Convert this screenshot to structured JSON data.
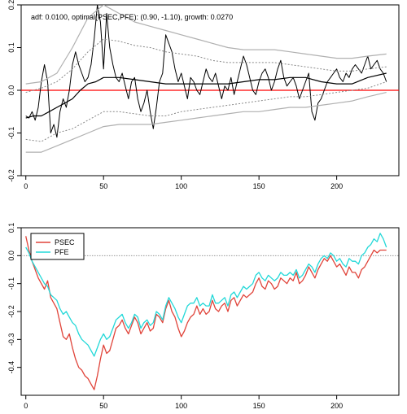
{
  "chart_data": [
    {
      "type": "line",
      "title": "adf: 0.0100, optimal(PSEC,PFE): (0.90, -1.10), growth: 0.0270",
      "xlim": [
        -3,
        240
      ],
      "ylim": [
        -0.2,
        0.2
      ],
      "x_ticks": [
        0,
        50,
        100,
        150,
        200
      ],
      "y_ticks": [
        -0.2,
        -0.1,
        0.0,
        0.1,
        0.2
      ],
      "y_tick_labels": [
        "-0.2",
        "-0.1",
        "0.0",
        "0.1",
        "0.2"
      ],
      "reference_line": {
        "y": 0,
        "color": "#ff0000"
      },
      "colors": {
        "spread": "#000000",
        "mean": "#000000",
        "band_inner": "#888888",
        "band_outer": "#b0b0b0"
      },
      "series": [
        {
          "key": "spread",
          "x": [
            0,
            2,
            4,
            6,
            8,
            10,
            12,
            14,
            16,
            18,
            20,
            22,
            24,
            26,
            28,
            30,
            32,
            34,
            36,
            38,
            40,
            42,
            44,
            46,
            48,
            50,
            52,
            54,
            56,
            58,
            60,
            62,
            64,
            66,
            68,
            70,
            72,
            74,
            76,
            78,
            80,
            82,
            84,
            86,
            88,
            90,
            92,
            94,
            96,
            98,
            100,
            102,
            104,
            106,
            108,
            110,
            112,
            114,
            116,
            118,
            120,
            122,
            124,
            126,
            128,
            130,
            132,
            134,
            136,
            138,
            140,
            142,
            144,
            146,
            148,
            150,
            152,
            154,
            156,
            158,
            160,
            162,
            164,
            166,
            168,
            170,
            172,
            174,
            176,
            178,
            180,
            182,
            184,
            186,
            188,
            190,
            192,
            194,
            196,
            198,
            200,
            202,
            204,
            206,
            208,
            210,
            212,
            214,
            216,
            218,
            220,
            222,
            224,
            226,
            228,
            230,
            232
          ],
          "y": [
            -0.06,
            -0.065,
            -0.05,
            -0.07,
            -0.04,
            0.02,
            0.06,
            0.02,
            -0.1,
            -0.08,
            -0.11,
            -0.05,
            -0.02,
            -0.04,
            0.0,
            0.06,
            0.09,
            0.06,
            0.04,
            0.02,
            0.03,
            0.06,
            0.12,
            0.2,
            0.16,
            0.05,
            0.18,
            0.1,
            0.06,
            0.03,
            0.02,
            0.04,
            0.01,
            -0.02,
            0.02,
            0.03,
            -0.02,
            -0.05,
            -0.03,
            0.0,
            -0.05,
            -0.09,
            -0.04,
            0.02,
            0.04,
            0.13,
            0.11,
            0.09,
            0.05,
            0.02,
            0.04,
            0.01,
            -0.02,
            0.03,
            0.02,
            0.0,
            -0.01,
            0.02,
            0.05,
            0.03,
            0.02,
            0.04,
            0.01,
            -0.02,
            0.01,
            0.0,
            0.03,
            -0.01,
            0.02,
            0.05,
            0.08,
            0.06,
            0.03,
            0.0,
            -0.01,
            0.02,
            0.04,
            0.05,
            0.03,
            0.0,
            0.02,
            0.05,
            0.07,
            0.03,
            0.01,
            0.02,
            0.03,
            0.01,
            -0.02,
            0.0,
            0.02,
            0.04,
            -0.05,
            -0.07,
            -0.03,
            -0.02,
            0.0,
            0.02,
            0.03,
            0.04,
            0.05,
            0.03,
            0.02,
            0.04,
            0.03,
            0.05,
            0.06,
            0.05,
            0.04,
            0.06,
            0.08,
            0.05,
            0.06,
            0.07,
            0.05,
            0.04,
            0.02
          ]
        },
        {
          "key": "mean",
          "x": [
            0,
            5,
            10,
            15,
            20,
            25,
            30,
            35,
            40,
            45,
            50,
            60,
            70,
            80,
            90,
            100,
            110,
            120,
            130,
            140,
            150,
            160,
            170,
            180,
            190,
            200,
            210,
            220,
            232
          ],
          "y": [
            -0.065,
            -0.06,
            -0.06,
            -0.05,
            -0.04,
            -0.03,
            -0.02,
            0.0,
            0.015,
            0.02,
            0.03,
            0.03,
            0.025,
            0.02,
            0.015,
            0.015,
            0.015,
            0.015,
            0.015,
            0.02,
            0.025,
            0.025,
            0.03,
            0.03,
            0.02,
            0.015,
            0.015,
            0.03,
            0.04
          ]
        },
        {
          "key": "band_inner_upper",
          "x": [
            0,
            10,
            20,
            30,
            40,
            50,
            60,
            70,
            80,
            90,
            100,
            110,
            120,
            130,
            140,
            150,
            160,
            170,
            180,
            190,
            200,
            210,
            220,
            232
          ],
          "y": [
            -0.005,
            0.005,
            0.02,
            0.05,
            0.09,
            0.12,
            0.115,
            0.105,
            0.1,
            0.09,
            0.085,
            0.08,
            0.07,
            0.065,
            0.065,
            0.065,
            0.065,
            0.06,
            0.055,
            0.05,
            0.045,
            0.045,
            0.05,
            0.055
          ]
        },
        {
          "key": "band_inner_lower",
          "x": [
            0,
            10,
            20,
            30,
            40,
            50,
            60,
            70,
            80,
            90,
            100,
            110,
            120,
            130,
            140,
            150,
            160,
            170,
            180,
            190,
            200,
            210,
            220,
            232
          ],
          "y": [
            -0.115,
            -0.12,
            -0.1,
            -0.09,
            -0.07,
            -0.05,
            -0.05,
            -0.055,
            -0.06,
            -0.06,
            -0.05,
            -0.045,
            -0.04,
            -0.035,
            -0.03,
            -0.025,
            -0.02,
            -0.015,
            -0.015,
            -0.01,
            -0.005,
            0.0,
            0.005,
            0.02
          ]
        },
        {
          "key": "band_outer_upper",
          "x": [
            0,
            10,
            20,
            30,
            40,
            50,
            60,
            70,
            80,
            90,
            100,
            110,
            120,
            130,
            140,
            150,
            160,
            170,
            180,
            190,
            200,
            210,
            220,
            232
          ],
          "y": [
            0.015,
            0.02,
            0.04,
            0.1,
            0.17,
            0.2,
            0.18,
            0.16,
            0.15,
            0.14,
            0.13,
            0.12,
            0.11,
            0.1,
            0.095,
            0.095,
            0.095,
            0.09,
            0.085,
            0.08,
            0.075,
            0.075,
            0.08,
            0.085
          ]
        },
        {
          "key": "band_outer_lower",
          "x": [
            0,
            10,
            20,
            30,
            40,
            50,
            60,
            70,
            80,
            90,
            100,
            110,
            120,
            130,
            140,
            150,
            160,
            170,
            180,
            190,
            200,
            210,
            220,
            232
          ],
          "y": [
            -0.145,
            -0.145,
            -0.13,
            -0.115,
            -0.1,
            -0.085,
            -0.08,
            -0.08,
            -0.08,
            -0.075,
            -0.07,
            -0.065,
            -0.06,
            -0.055,
            -0.05,
            -0.05,
            -0.045,
            -0.04,
            -0.04,
            -0.035,
            -0.03,
            -0.025,
            -0.015,
            -0.005
          ]
        }
      ]
    },
    {
      "type": "line",
      "xlim": [
        -3,
        240
      ],
      "ylim": [
        -0.5,
        0.1
      ],
      "x_ticks": [
        0,
        50,
        100,
        150,
        200
      ],
      "y_ticks": [
        -0.4,
        -0.3,
        -0.2,
        -0.1,
        0.0,
        0.1
      ],
      "y_tick_labels": [
        "-0.4",
        "-0.3",
        "-0.2",
        "-0.1",
        "0.0",
        "0.1"
      ],
      "reference_line": {
        "y": 0,
        "color": "#888888",
        "style": "dotted"
      },
      "legend": {
        "placement": "top-left"
      },
      "series": [
        {
          "name": "PSEC",
          "color": "#e0443a",
          "x": [
            0,
            2,
            4,
            6,
            8,
            10,
            12,
            14,
            16,
            18,
            20,
            22,
            24,
            26,
            28,
            30,
            32,
            34,
            36,
            38,
            40,
            42,
            44,
            46,
            48,
            50,
            52,
            54,
            56,
            58,
            60,
            62,
            64,
            66,
            68,
            70,
            72,
            74,
            76,
            78,
            80,
            82,
            84,
            86,
            88,
            90,
            92,
            94,
            96,
            98,
            100,
            102,
            104,
            106,
            108,
            110,
            112,
            114,
            116,
            118,
            120,
            122,
            124,
            126,
            128,
            130,
            132,
            134,
            136,
            138,
            140,
            142,
            144,
            146,
            148,
            150,
            152,
            154,
            156,
            158,
            160,
            162,
            164,
            166,
            168,
            170,
            172,
            174,
            176,
            178,
            180,
            182,
            184,
            186,
            188,
            190,
            192,
            194,
            196,
            198,
            200,
            202,
            204,
            206,
            208,
            210,
            212,
            214,
            216,
            218,
            220,
            222,
            224,
            226,
            228,
            230,
            232
          ],
          "y": [
            0.07,
            0.02,
            -0.02,
            -0.05,
            -0.08,
            -0.1,
            -0.12,
            -0.09,
            -0.15,
            -0.17,
            -0.19,
            -0.24,
            -0.29,
            -0.3,
            -0.28,
            -0.33,
            -0.37,
            -0.4,
            -0.41,
            -0.43,
            -0.44,
            -0.46,
            -0.48,
            -0.43,
            -0.37,
            -0.32,
            -0.35,
            -0.34,
            -0.3,
            -0.26,
            -0.25,
            -0.23,
            -0.26,
            -0.28,
            -0.25,
            -0.22,
            -0.24,
            -0.28,
            -0.26,
            -0.24,
            -0.27,
            -0.26,
            -0.21,
            -0.22,
            -0.24,
            -0.19,
            -0.16,
            -0.2,
            -0.22,
            -0.26,
            -0.29,
            -0.27,
            -0.24,
            -0.22,
            -0.21,
            -0.18,
            -0.21,
            -0.19,
            -0.21,
            -0.2,
            -0.16,
            -0.19,
            -0.2,
            -0.18,
            -0.17,
            -0.2,
            -0.16,
            -0.15,
            -0.18,
            -0.16,
            -0.14,
            -0.15,
            -0.14,
            -0.13,
            -0.1,
            -0.08,
            -0.11,
            -0.12,
            -0.09,
            -0.1,
            -0.12,
            -0.11,
            -0.08,
            -0.09,
            -0.1,
            -0.08,
            -0.09,
            -0.06,
            -0.1,
            -0.09,
            -0.07,
            -0.04,
            -0.06,
            -0.08,
            -0.05,
            -0.03,
            -0.01,
            -0.02,
            0.0,
            -0.02,
            -0.04,
            -0.03,
            -0.05,
            -0.07,
            -0.04,
            -0.06,
            -0.06,
            -0.08,
            -0.05,
            -0.04,
            -0.02,
            0.0,
            0.02,
            0.01,
            0.02,
            0.02,
            0.02
          ]
        },
        {
          "name": "PFE",
          "color": "#22d8d8",
          "x": [
            0,
            2,
            4,
            6,
            8,
            10,
            12,
            14,
            16,
            18,
            20,
            22,
            24,
            26,
            28,
            30,
            32,
            34,
            36,
            38,
            40,
            42,
            44,
            46,
            48,
            50,
            52,
            54,
            56,
            58,
            60,
            62,
            64,
            66,
            68,
            70,
            72,
            74,
            76,
            78,
            80,
            82,
            84,
            86,
            88,
            90,
            92,
            94,
            96,
            98,
            100,
            102,
            104,
            106,
            108,
            110,
            112,
            114,
            116,
            118,
            120,
            122,
            124,
            126,
            128,
            130,
            132,
            134,
            136,
            138,
            140,
            142,
            144,
            146,
            148,
            150,
            152,
            154,
            156,
            158,
            160,
            162,
            164,
            166,
            168,
            170,
            172,
            174,
            176,
            178,
            180,
            182,
            184,
            186,
            188,
            190,
            192,
            194,
            196,
            198,
            200,
            202,
            204,
            206,
            208,
            210,
            212,
            214,
            216,
            218,
            220,
            222,
            224,
            226,
            228,
            230,
            232
          ],
          "y": [
            0.03,
            0.01,
            -0.02,
            -0.04,
            -0.06,
            -0.08,
            -0.1,
            -0.11,
            -0.14,
            -0.15,
            -0.16,
            -0.19,
            -0.21,
            -0.2,
            -0.22,
            -0.24,
            -0.25,
            -0.28,
            -0.3,
            -0.31,
            -0.32,
            -0.34,
            -0.36,
            -0.33,
            -0.3,
            -0.28,
            -0.3,
            -0.29,
            -0.26,
            -0.23,
            -0.22,
            -0.21,
            -0.24,
            -0.26,
            -0.24,
            -0.21,
            -0.22,
            -0.26,
            -0.24,
            -0.23,
            -0.25,
            -0.24,
            -0.2,
            -0.21,
            -0.23,
            -0.18,
            -0.15,
            -0.17,
            -0.19,
            -0.22,
            -0.24,
            -0.21,
            -0.18,
            -0.17,
            -0.17,
            -0.15,
            -0.18,
            -0.17,
            -0.18,
            -0.18,
            -0.14,
            -0.17,
            -0.17,
            -0.16,
            -0.15,
            -0.18,
            -0.14,
            -0.13,
            -0.15,
            -0.13,
            -0.11,
            -0.12,
            -0.11,
            -0.1,
            -0.07,
            -0.06,
            -0.08,
            -0.09,
            -0.07,
            -0.08,
            -0.09,
            -0.08,
            -0.06,
            -0.07,
            -0.07,
            -0.06,
            -0.07,
            -0.05,
            -0.08,
            -0.07,
            -0.05,
            -0.03,
            -0.04,
            -0.06,
            -0.03,
            -0.01,
            0.0,
            -0.01,
            0.01,
            0.0,
            -0.02,
            -0.01,
            -0.03,
            -0.04,
            -0.01,
            -0.02,
            -0.02,
            -0.03,
            0.0,
            0.01,
            0.03,
            0.04,
            0.06,
            0.05,
            0.08,
            0.06,
            0.03
          ]
        }
      ]
    }
  ]
}
